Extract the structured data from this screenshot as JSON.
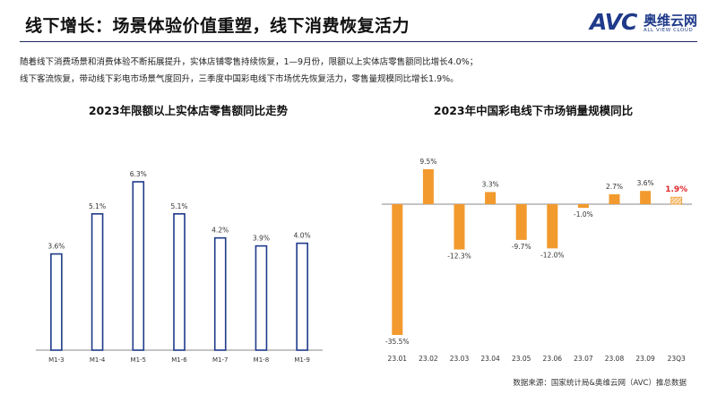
{
  "header": {
    "title": "线下增长：场景体验价值重塑，线下消费恢复活力",
    "logo_main": "AVC",
    "logo_cn": "奥维云网",
    "logo_en": "ALL VIEW CLOUD"
  },
  "summary": {
    "line1": "随着线下消费场景和消费体验不断拓展提升，实体店铺零售持续恢复，1—9月份，限额以上实体店零售额同比增长4.0%；",
    "line2": "线下客流恢复，带动线下彩电市场景气度回升，三季度中国彩电线下市场优先恢复活力，零售量规模同比增长1.9%。"
  },
  "colors": {
    "left_bar_stroke": "#1e3a8a",
    "right_bar_fill": "#f29a2e",
    "highlight_label": "#e0262b",
    "axis": "#888888"
  },
  "chart_data": [
    {
      "type": "bar",
      "title": "2023年限额以上实体店零售额同比走势",
      "categories": [
        "M1-3",
        "M1-4",
        "M1-5",
        "M1-6",
        "M1-7",
        "M1-8",
        "M1-9"
      ],
      "values": [
        3.6,
        5.1,
        6.3,
        5.1,
        4.2,
        3.9,
        4.0
      ],
      "data_labels": [
        "3.6%",
        "5.1%",
        "6.3%",
        "5.1%",
        "4.2%",
        "3.9%",
        "4.0%"
      ],
      "ylim": [
        0,
        6.3
      ],
      "grid": false,
      "style": "outlined"
    },
    {
      "type": "bar",
      "title": "2023年中国彩电线下市场销量规模同比",
      "categories": [
        "23.01",
        "23.02",
        "23.03",
        "23.04",
        "23.05",
        "23.06",
        "23.07",
        "23.08",
        "23.09",
        "23Q3"
      ],
      "values": [
        -35.5,
        9.5,
        -12.3,
        3.3,
        -9.7,
        -12.0,
        -1.0,
        2.7,
        3.6,
        1.9
      ],
      "data_labels": [
        "-35.5%",
        "9.5%",
        "-12.3%",
        "3.3%",
        "-9.7%",
        "-12.0%",
        "-1.0%",
        "2.7%",
        "3.6%",
        "1.9%"
      ],
      "highlight_index": 9,
      "ylim": [
        -35.5,
        9.5
      ],
      "grid": false
    }
  ],
  "footer": {
    "source": "数据来源：国家统计局&奥维云网（AVC）推总数据"
  }
}
